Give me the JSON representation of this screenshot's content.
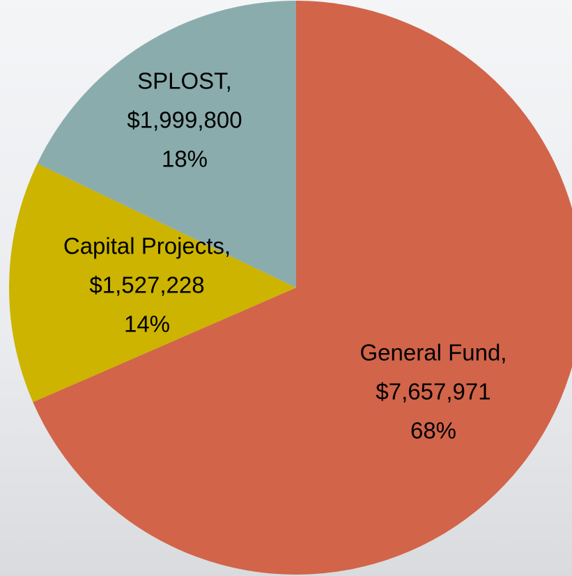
{
  "chart_data": {
    "type": "pie",
    "categories": [
      "General Fund,",
      "Capital Projects,",
      "SPLOST,"
    ],
    "values": [
      7657971,
      1527228,
      1999800
    ],
    "value_labels": [
      "$7,657,971",
      "$1,527,228",
      "$1,999,800"
    ],
    "percent_labels": [
      "68%",
      "14%",
      "18%"
    ],
    "colors": [
      "#d2644a",
      "#ccb400",
      "#8aacad"
    ]
  }
}
